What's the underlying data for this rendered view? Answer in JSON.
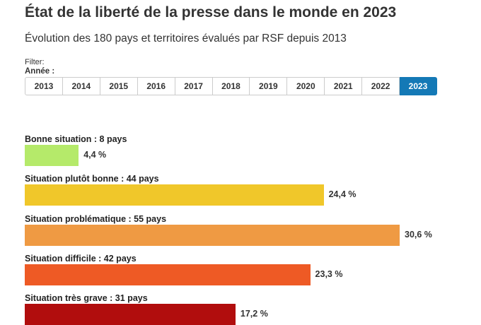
{
  "title": "État de la liberté de la presse dans le monde en 2023",
  "subtitle": "Évolution des 180 pays et territoires évalués par RSF depuis 2013",
  "filter": {
    "label": "Filter:",
    "name": "Année :",
    "years": [
      "2013",
      "2014",
      "2015",
      "2016",
      "2017",
      "2018",
      "2019",
      "2020",
      "2021",
      "2022",
      "2023"
    ],
    "selected": "2023",
    "accent_color": "#1479b6"
  },
  "chart_data": {
    "type": "bar",
    "orientation": "horizontal",
    "categories": [
      "Bonne situation : 8 pays",
      "Situation plutôt bonne : 44 pays",
      "Situation problématique : 55 pays",
      "Situation difficile : 42 pays",
      "Situation très grave : 31 pays"
    ],
    "values": [
      4.4,
      24.4,
      30.6,
      23.3,
      17.2
    ],
    "value_labels": [
      "4,4 %",
      "24,4 %",
      "30,6 %",
      "23,3 %",
      "17,2 %"
    ],
    "colors": [
      "#b5ea6a",
      "#f0c72a",
      "#ef9a43",
      "#ee5a25",
      "#b10d0d"
    ],
    "xlim": [
      0,
      30.6
    ],
    "grid": false,
    "legend": "none"
  }
}
